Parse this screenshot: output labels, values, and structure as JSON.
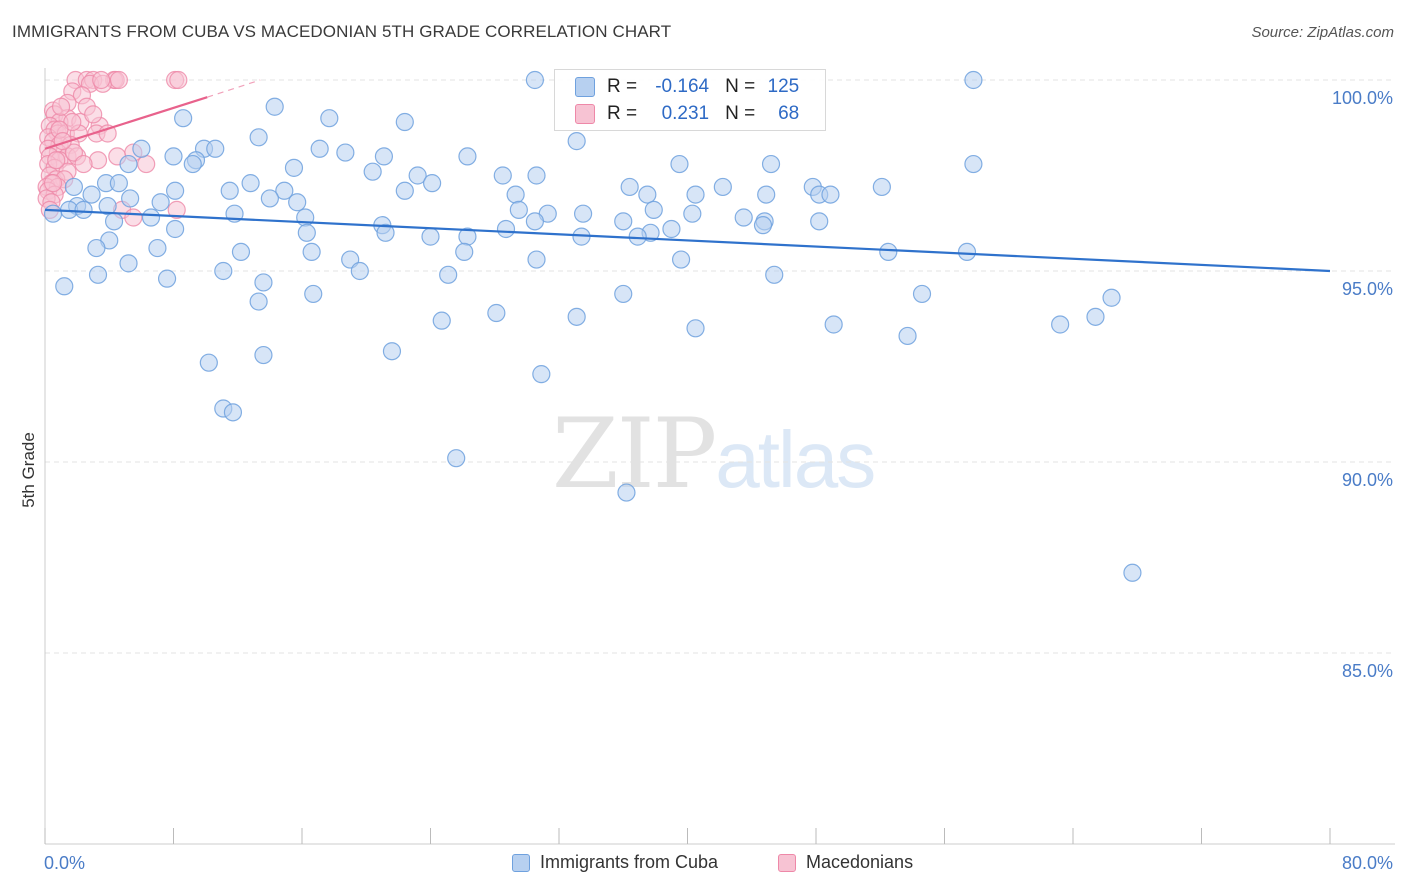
{
  "title": "IMMIGRANTS FROM CUBA VS MACEDONIAN 5TH GRADE CORRELATION CHART",
  "source": "Source: ZipAtlas.com",
  "watermark": {
    "zip": "ZIP",
    "atlas": "atlas"
  },
  "stats": [
    {
      "r_label": "R =",
      "r_value": "-0.164",
      "n_label": "N =",
      "n_value": "125"
    },
    {
      "r_label": "R =",
      "r_value": "0.231",
      "n_label": "N =",
      "n_value": "68"
    }
  ],
  "legend": [
    "Immigrants from Cuba",
    "Macedonians"
  ],
  "chart_data": {
    "type": "scatter",
    "xlabel": "",
    "ylabel": "5th Grade",
    "xlim": [
      0,
      80
    ],
    "ylim": [
      80,
      100.7
    ],
    "x_tick_labels": [
      "0.0%",
      "80.0%"
    ],
    "y_ticks": [
      85,
      90,
      95,
      100
    ],
    "y_tick_labels": [
      "85.0%",
      "90.0%",
      "95.0%",
      "100.0%"
    ],
    "colors": {
      "cuba": "#6fa1de",
      "cuba_fill": "#b7d0f0",
      "mac": "#ee88a8",
      "mac_fill": "#f7c3d3",
      "cuba_line": "#2f72cc",
      "mac_line": "#e8628c"
    },
    "series": [
      {
        "name": "Immigrants from Cuba",
        "trend": {
          "x0": 0,
          "y0": 96.6,
          "x1": 80,
          "y1": 95.0
        },
        "points": [
          [
            30.5,
            100.0
          ],
          [
            57.8,
            100.0
          ],
          [
            14.3,
            99.3
          ],
          [
            8.6,
            99.0
          ],
          [
            17.7,
            99.0
          ],
          [
            22.4,
            98.9
          ],
          [
            13.3,
            98.5
          ],
          [
            33.1,
            98.4
          ],
          [
            6.0,
            98.2
          ],
          [
            9.9,
            98.2
          ],
          [
            10.6,
            98.2
          ],
          [
            17.1,
            98.2
          ],
          [
            18.7,
            98.1
          ],
          [
            21.1,
            98.0
          ],
          [
            8.0,
            98.0
          ],
          [
            9.4,
            97.9
          ],
          [
            5.2,
            97.8
          ],
          [
            39.5,
            97.8
          ],
          [
            45.2,
            97.8
          ],
          [
            57.8,
            97.8
          ],
          [
            15.5,
            97.7
          ],
          [
            20.4,
            97.6
          ],
          [
            23.2,
            97.5
          ],
          [
            28.5,
            97.5
          ],
          [
            30.6,
            97.5
          ],
          [
            3.8,
            97.3
          ],
          [
            4.6,
            97.3
          ],
          [
            12.8,
            97.3
          ],
          [
            24.1,
            97.3
          ],
          [
            36.4,
            97.2
          ],
          [
            42.2,
            97.2
          ],
          [
            47.8,
            97.2
          ],
          [
            52.1,
            97.2
          ],
          [
            8.1,
            97.1
          ],
          [
            1.8,
            97.2
          ],
          [
            11.5,
            97.1
          ],
          [
            14.9,
            97.1
          ],
          [
            22.4,
            97.1
          ],
          [
            29.3,
            97.0
          ],
          [
            37.5,
            97.0
          ],
          [
            40.5,
            97.0
          ],
          [
            44.9,
            97.0
          ],
          [
            48.2,
            97.0
          ],
          [
            48.9,
            97.0
          ],
          [
            2.9,
            97.0
          ],
          [
            5.3,
            96.9
          ],
          [
            7.2,
            96.8
          ],
          [
            14.0,
            96.9
          ],
          [
            15.7,
            96.8
          ],
          [
            3.9,
            96.7
          ],
          [
            2.0,
            96.7
          ],
          [
            1.5,
            96.6
          ],
          [
            6.6,
            96.4
          ],
          [
            11.8,
            96.5
          ],
          [
            29.5,
            96.6
          ],
          [
            31.3,
            96.5
          ],
          [
            33.5,
            96.5
          ],
          [
            37.9,
            96.6
          ],
          [
            40.3,
            96.5
          ],
          [
            43.5,
            96.4
          ],
          [
            44.8,
            96.3
          ],
          [
            48.2,
            96.3
          ],
          [
            0.5,
            96.5
          ],
          [
            2.4,
            96.6
          ],
          [
            4.3,
            96.3
          ],
          [
            16.2,
            96.4
          ],
          [
            21.0,
            96.2
          ],
          [
            28.7,
            96.1
          ],
          [
            30.5,
            96.3
          ],
          [
            36.0,
            96.3
          ],
          [
            44.7,
            96.2
          ],
          [
            37.7,
            96.0
          ],
          [
            4.0,
            95.8
          ],
          [
            8.1,
            96.1
          ],
          [
            16.3,
            96.0
          ],
          [
            21.2,
            96.0
          ],
          [
            24.0,
            95.9
          ],
          [
            26.3,
            95.9
          ],
          [
            33.4,
            95.9
          ],
          [
            36.9,
            95.9
          ],
          [
            3.2,
            95.6
          ],
          [
            7.0,
            95.6
          ],
          [
            12.2,
            95.5
          ],
          [
            16.6,
            95.5
          ],
          [
            19.0,
            95.3
          ],
          [
            26.1,
            95.5
          ],
          [
            30.6,
            95.3
          ],
          [
            39.6,
            95.3
          ],
          [
            52.5,
            95.5
          ],
          [
            57.4,
            95.5
          ],
          [
            5.2,
            95.2
          ],
          [
            11.1,
            95.0
          ],
          [
            19.6,
            95.0
          ],
          [
            25.1,
            94.9
          ],
          [
            45.4,
            94.9
          ],
          [
            1.2,
            94.6
          ],
          [
            3.3,
            94.9
          ],
          [
            7.6,
            94.8
          ],
          [
            13.6,
            94.7
          ],
          [
            16.7,
            94.4
          ],
          [
            36.0,
            94.4
          ],
          [
            54.6,
            94.4
          ],
          [
            66.4,
            94.3
          ],
          [
            13.3,
            94.2
          ],
          [
            28.1,
            93.9
          ],
          [
            33.1,
            93.8
          ],
          [
            24.7,
            93.7
          ],
          [
            40.5,
            93.5
          ],
          [
            49.1,
            93.6
          ],
          [
            53.7,
            93.3
          ],
          [
            63.2,
            93.6
          ],
          [
            65.4,
            93.8
          ],
          [
            13.6,
            92.8
          ],
          [
            21.6,
            92.9
          ],
          [
            10.2,
            92.6
          ],
          [
            30.9,
            92.3
          ],
          [
            11.1,
            91.4
          ],
          [
            11.7,
            91.3
          ],
          [
            25.6,
            90.1
          ],
          [
            36.2,
            89.2
          ],
          [
            67.7,
            87.1
          ],
          [
            9.2,
            97.8
          ],
          [
            26.3,
            98.0
          ],
          [
            39.0,
            96.1
          ]
        ]
      },
      {
        "name": "Macedonians",
        "trend": {
          "x0": 0,
          "y0": 98.2,
          "x1": 10.1,
          "y1": 99.55,
          "dash_x1": 13.4,
          "dash_y1": 100.0
        },
        "points": [
          [
            1.9,
            100.0
          ],
          [
            2.6,
            100.0
          ],
          [
            3.0,
            100.0
          ],
          [
            4.3,
            100.0
          ],
          [
            4.4,
            100.0
          ],
          [
            8.1,
            100.0
          ],
          [
            8.3,
            100.0
          ],
          [
            2.8,
            99.9
          ],
          [
            3.6,
            99.9
          ],
          [
            1.7,
            99.7
          ],
          [
            2.3,
            99.6
          ],
          [
            1.4,
            99.4
          ],
          [
            0.5,
            99.2
          ],
          [
            0.6,
            99.1
          ],
          [
            1.4,
            99.0
          ],
          [
            2.2,
            98.9
          ],
          [
            3.4,
            98.8
          ],
          [
            0.9,
            98.9
          ],
          [
            0.3,
            98.8
          ],
          [
            0.6,
            98.7
          ],
          [
            0.8,
            98.6
          ],
          [
            1.3,
            98.6
          ],
          [
            2.1,
            98.6
          ],
          [
            3.2,
            98.6
          ],
          [
            0.2,
            98.5
          ],
          [
            0.5,
            98.4
          ],
          [
            0.9,
            98.3
          ],
          [
            1.6,
            98.3
          ],
          [
            0.2,
            98.2
          ],
          [
            0.8,
            98.1
          ],
          [
            1.4,
            98.0
          ],
          [
            2.0,
            98.0
          ],
          [
            0.3,
            98.0
          ],
          [
            0.9,
            97.9
          ],
          [
            0.2,
            97.8
          ],
          [
            0.6,
            97.7
          ],
          [
            1.4,
            97.6
          ],
          [
            0.3,
            97.5
          ],
          [
            0.7,
            97.4
          ],
          [
            1.2,
            97.4
          ],
          [
            0.4,
            97.3
          ],
          [
            0.1,
            97.2
          ],
          [
            0.8,
            97.2
          ],
          [
            0.2,
            97.1
          ],
          [
            0.6,
            97.0
          ],
          [
            0.1,
            96.9
          ],
          [
            0.4,
            96.8
          ],
          [
            3.9,
            98.6
          ],
          [
            4.5,
            98.0
          ],
          [
            5.5,
            98.1
          ],
          [
            6.3,
            97.8
          ],
          [
            4.8,
            96.6
          ],
          [
            8.2,
            96.6
          ],
          [
            5.5,
            96.4
          ],
          [
            3.3,
            97.9
          ],
          [
            2.6,
            99.3
          ],
          [
            3.0,
            99.1
          ],
          [
            1.8,
            98.1
          ],
          [
            2.4,
            97.8
          ],
          [
            1.0,
            99.3
          ],
          [
            1.7,
            98.9
          ],
          [
            0.9,
            98.7
          ],
          [
            1.1,
            98.4
          ],
          [
            0.7,
            97.9
          ],
          [
            0.5,
            97.3
          ],
          [
            0.3,
            96.6
          ],
          [
            3.5,
            100.0
          ],
          [
            4.6,
            100.0
          ]
        ]
      }
    ]
  }
}
